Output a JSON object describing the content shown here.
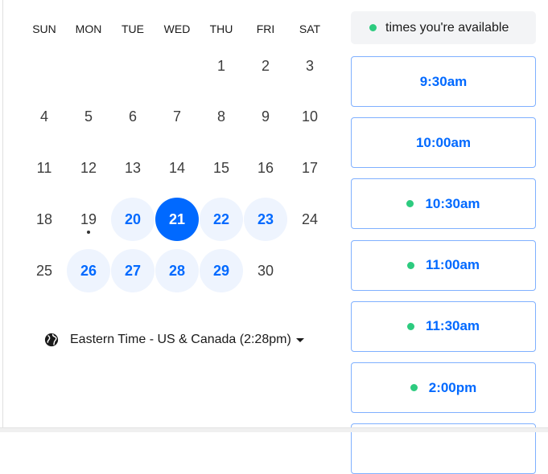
{
  "calendar": {
    "weekdays": [
      "SUN",
      "MON",
      "TUE",
      "WED",
      "THU",
      "FRI",
      "SAT"
    ],
    "first_weekday_index": 4,
    "days_in_month": 30,
    "available_days": [
      20,
      22,
      23,
      26,
      27,
      28,
      29
    ],
    "selected_day": 21,
    "today_marker_day": 19
  },
  "timezone": {
    "label": "Eastern Time - US & Canada (2:28pm)",
    "icon": "globe-icon"
  },
  "legend": {
    "label": "times you're available",
    "dot_color": "#2dcb7f"
  },
  "slots": [
    {
      "time": "9:30am",
      "available": false
    },
    {
      "time": "10:00am",
      "available": false
    },
    {
      "time": "10:30am",
      "available": true
    },
    {
      "time": "11:00am",
      "available": true
    },
    {
      "time": "11:30am",
      "available": true
    },
    {
      "time": "2:00pm",
      "available": true
    },
    {
      "time": "",
      "available": false
    }
  ],
  "colors": {
    "accent": "#0069ff",
    "available_bg": "#eef4fe",
    "slot_border": "#7fb0ff"
  }
}
